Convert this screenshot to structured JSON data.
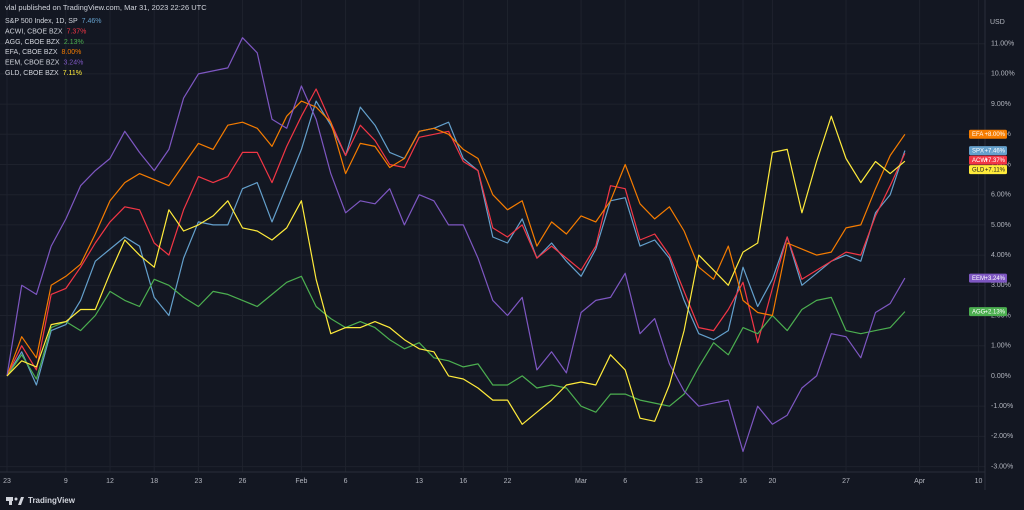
{
  "header": "vlal published on TradingView.com, Mar 31, 2023 22:26 UTC",
  "footer": "TradingView",
  "chart_data": {
    "type": "line",
    "y_axis_label": "USD",
    "categories": [
      "23",
      null,
      null,
      null,
      "9",
      null,
      null,
      "12",
      null,
      null,
      "18",
      null,
      null,
      "23",
      null,
      null,
      "26",
      null,
      null,
      null,
      "Feb",
      null,
      null,
      "6",
      null,
      null,
      null,
      null,
      "13",
      null,
      null,
      "16",
      null,
      null,
      "22",
      null,
      null,
      null,
      null,
      "Mar",
      null,
      null,
      "6",
      null,
      null,
      null,
      null,
      "13",
      null,
      null,
      "16",
      null,
      "20",
      null,
      null,
      null,
      null,
      "27",
      null,
      null,
      null,
      null,
      "Apr",
      null,
      null,
      null,
      "10"
    ],
    "ylim": [
      -3.18,
      11.95
    ],
    "yticks": [
      {
        "value": 11,
        "label": "11.00%"
      },
      {
        "value": 10,
        "label": "10.00%"
      },
      {
        "value": 9,
        "label": "9.00%"
      },
      {
        "value": 8,
        "label": "8.00%"
      },
      {
        "value": 7,
        "label": "7.00%"
      },
      {
        "value": 6,
        "label": "6.00%"
      },
      {
        "value": 5,
        "label": "5.00%"
      },
      {
        "value": 4,
        "label": "4.00%"
      },
      {
        "value": 3,
        "label": "3.00%"
      },
      {
        "value": 2,
        "label": "2.00%"
      },
      {
        "value": 1,
        "label": "1.00%"
      },
      {
        "value": 0,
        "label": "0.00%"
      },
      {
        "value": -1,
        "label": "-1.00%"
      },
      {
        "value": -2,
        "label": "-2.00%"
      },
      {
        "value": -3,
        "label": "-3.00%"
      }
    ],
    "grid": true,
    "series": [
      {
        "name": "S&P 500 Index, 1D, SP",
        "legend_value": "7.46%",
        "symbol": "SPX",
        "end_label": "+7.46%",
        "color": "#64a0cc",
        "values": [
          0,
          0.8,
          -0.3,
          1.5,
          1.7,
          2.5,
          3.8,
          4.2,
          4.6,
          4.3,
          2.6,
          2.0,
          3.9,
          5.1,
          5.0,
          5.0,
          6.2,
          6.4,
          5.1,
          6.3,
          7.5,
          9.1,
          8.3,
          7.3,
          8.9,
          8.3,
          7.4,
          7.2,
          8.1,
          8.2,
          8.4,
          7.2,
          6.8,
          4.6,
          4.4,
          5.2,
          3.9,
          4.4,
          3.8,
          3.3,
          4.2,
          5.8,
          5.9,
          4.3,
          4.5,
          3.9,
          2.5,
          1.4,
          1.2,
          1.5,
          3.6,
          2.3,
          3.2,
          4.6,
          3.0,
          3.4,
          3.8,
          4.0,
          3.8,
          5.4,
          6.0,
          7.46,
          null,
          null,
          null,
          null,
          null
        ]
      },
      {
        "name": "ACWI, CBOE BZX",
        "legend_value": "7.37%",
        "symbol": "ACWI",
        "end_label": "+7.37%",
        "color": "#f23645",
        "values": [
          0,
          1.0,
          0.2,
          2.7,
          2.9,
          3.6,
          4.4,
          5.1,
          5.6,
          5.5,
          4.4,
          4.0,
          5.5,
          6.6,
          6.4,
          6.6,
          7.4,
          7.4,
          6.4,
          7.6,
          8.6,
          9.5,
          8.4,
          7.3,
          8.3,
          7.8,
          7.0,
          6.9,
          7.9,
          8.0,
          8.1,
          7.1,
          6.8,
          4.9,
          4.6,
          5.0,
          3.9,
          4.3,
          3.9,
          3.5,
          4.3,
          6.3,
          6.2,
          4.5,
          4.7,
          4.0,
          2.8,
          1.6,
          1.5,
          2.2,
          3.1,
          1.1,
          2.9,
          4.6,
          3.2,
          3.5,
          3.8,
          4.1,
          4.0,
          5.3,
          6.3,
          7.37,
          null,
          null,
          null,
          null,
          null
        ]
      },
      {
        "name": "AGG, CBOE BZX",
        "legend_value": "2.13%",
        "symbol": "AGG",
        "end_label": "+2.13%",
        "color": "#4caf50",
        "values": [
          0,
          0.7,
          -0.1,
          1.6,
          1.8,
          1.5,
          2.0,
          2.8,
          2.5,
          2.3,
          3.2,
          3.0,
          2.6,
          2.3,
          2.8,
          2.7,
          2.5,
          2.3,
          2.7,
          3.1,
          3.3,
          2.3,
          1.9,
          1.6,
          1.8,
          1.6,
          1.2,
          0.9,
          1.1,
          0.6,
          0.5,
          0.3,
          0.4,
          -0.3,
          -0.3,
          0.0,
          -0.4,
          -0.3,
          -0.4,
          -1.0,
          -1.2,
          -0.6,
          -0.6,
          -0.8,
          -0.9,
          -1.0,
          -0.6,
          0.3,
          1.1,
          0.7,
          1.6,
          1.4,
          2.0,
          1.5,
          2.2,
          2.5,
          2.6,
          1.5,
          1.4,
          1.5,
          1.6,
          2.13,
          null,
          null,
          null,
          null,
          null
        ]
      },
      {
        "name": "EFA, CBOE BZX",
        "legend_value": "8.00%",
        "symbol": "EFA",
        "end_label": "+8.00%",
        "color": "#f57c00",
        "values": [
          0,
          1.3,
          0.6,
          3.0,
          3.3,
          3.7,
          4.7,
          5.8,
          6.4,
          6.7,
          6.5,
          6.3,
          7.0,
          7.7,
          7.5,
          8.3,
          8.4,
          8.2,
          7.6,
          8.6,
          9.1,
          8.9,
          8.4,
          6.7,
          7.7,
          7.6,
          6.9,
          7.2,
          8.1,
          8.2,
          8.0,
          7.5,
          7.2,
          6.0,
          5.5,
          5.8,
          4.3,
          5.1,
          4.7,
          5.3,
          5.1,
          5.8,
          7.0,
          5.7,
          5.2,
          5.6,
          4.8,
          3.6,
          3.2,
          4.3,
          2.5,
          2.1,
          2.0,
          4.4,
          4.2,
          4.0,
          4.1,
          4.9,
          5.0,
          6.2,
          7.3,
          8.0,
          null,
          null,
          null,
          null,
          null
        ]
      },
      {
        "name": "EEM, CBOE BZX",
        "legend_value": "3.24%",
        "symbol": "EEM",
        "end_label": "+3.24%",
        "color": "#7e57c2",
        "values": [
          0,
          3.0,
          2.7,
          4.3,
          5.2,
          6.3,
          6.8,
          7.2,
          8.1,
          7.4,
          6.8,
          7.5,
          9.2,
          10.0,
          10.1,
          10.2,
          11.2,
          10.7,
          8.5,
          8.2,
          9.6,
          8.5,
          6.7,
          5.4,
          5.8,
          5.7,
          6.2,
          5.0,
          6.0,
          5.8,
          5.0,
          5.0,
          3.9,
          2.5,
          2.0,
          2.6,
          0.2,
          0.8,
          0.1,
          2.1,
          2.5,
          2.6,
          3.4,
          1.4,
          1.9,
          0.4,
          -0.5,
          -1.0,
          -0.9,
          -0.8,
          -2.5,
          -1.0,
          -1.6,
          -1.3,
          -0.4,
          0.0,
          1.4,
          1.3,
          0.6,
          2.1,
          2.4,
          3.24,
          null,
          null,
          null,
          null,
          null
        ]
      },
      {
        "name": "GLD, CBOE BZX",
        "legend_value": "7.11%",
        "symbol": "GLD",
        "end_label": "+7.11%",
        "color": "#ffeb3b",
        "values": [
          0,
          0.5,
          0.3,
          1.7,
          1.8,
          2.2,
          2.2,
          3.4,
          4.5,
          4.0,
          3.6,
          5.5,
          4.8,
          5.0,
          5.3,
          5.8,
          4.9,
          4.8,
          4.5,
          4.9,
          5.8,
          3.2,
          1.4,
          1.6,
          1.6,
          1.8,
          1.6,
          1.2,
          0.9,
          0.8,
          0.0,
          -0.1,
          -0.4,
          -0.8,
          -0.8,
          -1.6,
          -1.2,
          -0.8,
          -0.3,
          -0.2,
          -0.3,
          0.7,
          0.2,
          -1.4,
          -1.5,
          -0.3,
          1.5,
          4.0,
          3.5,
          3.0,
          4.1,
          4.4,
          7.4,
          7.5,
          5.4,
          7.1,
          8.6,
          7.2,
          6.4,
          7.1,
          6.7,
          7.11,
          null,
          null,
          null,
          null,
          null
        ]
      }
    ]
  }
}
